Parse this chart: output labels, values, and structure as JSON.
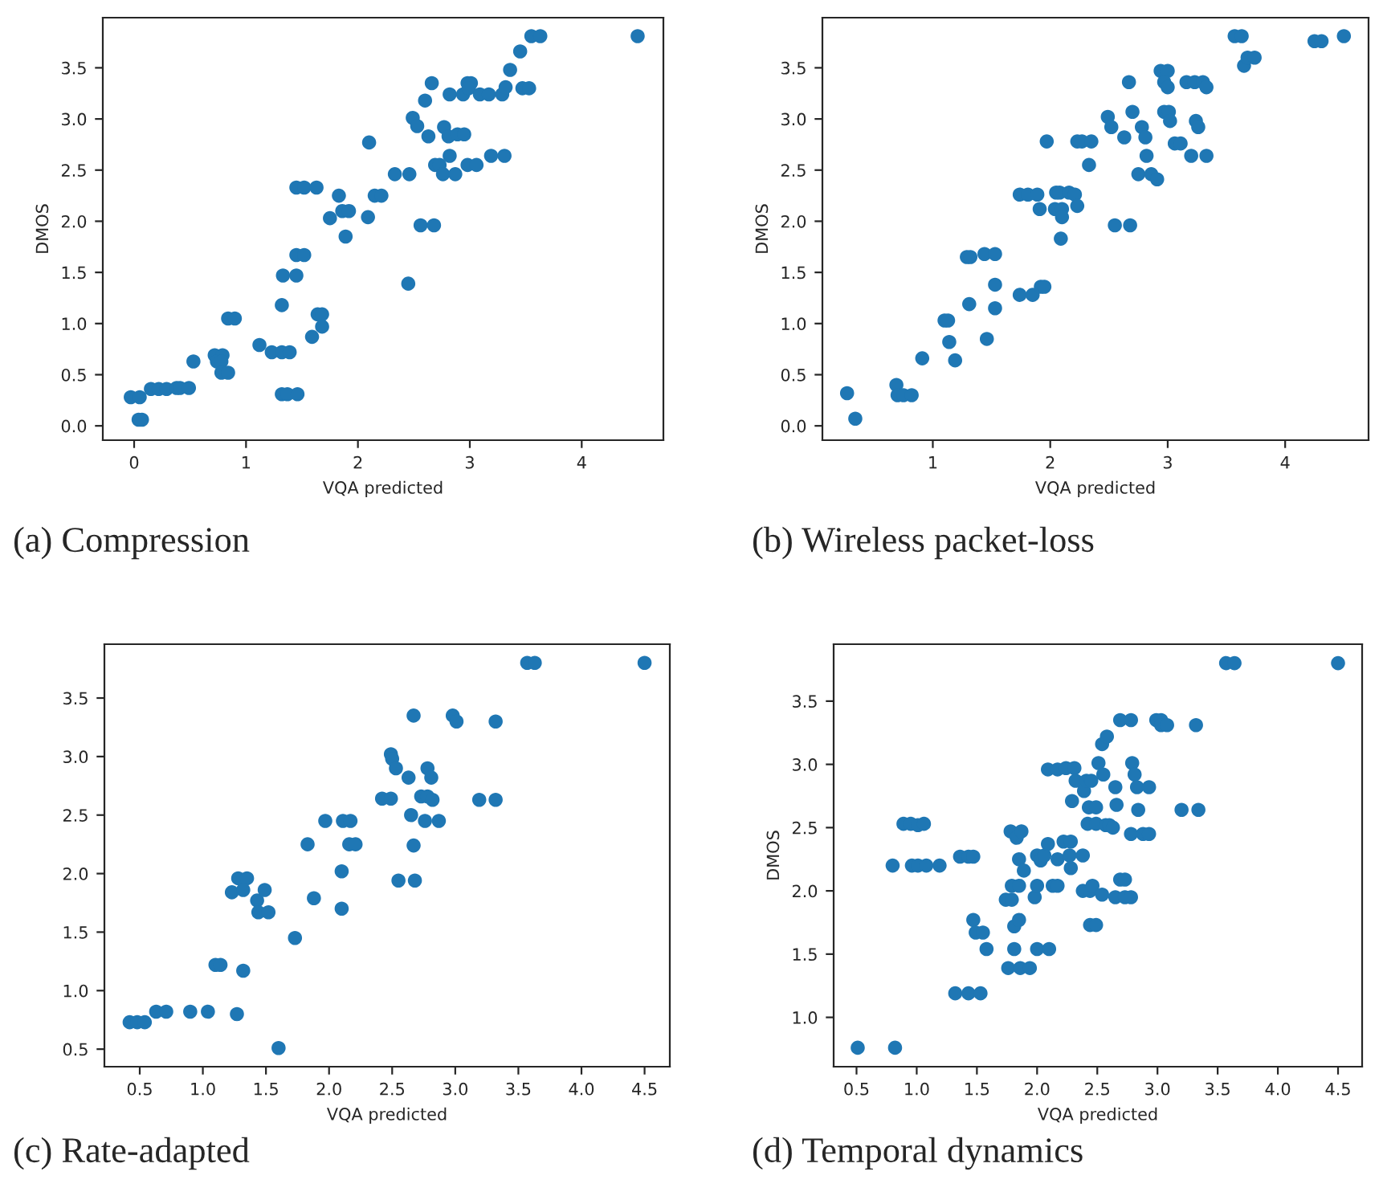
{
  "chart_data": [
    {
      "type": "scatter",
      "title": "(a) Compression",
      "xlabel": "VQA predicted",
      "ylabel": "DMOS",
      "color": "#1f77b4",
      "marker": "circle",
      "x": [
        -0.03,
        0.05,
        0.07,
        0.04,
        0.15,
        0.22,
        0.29,
        0.38,
        0.41,
        0.49,
        0.53,
        0.72,
        0.79,
        0.74,
        0.78,
        0.78,
        0.84,
        0.84,
        0.9,
        1.12,
        1.23,
        1.32,
        1.39,
        1.32,
        1.37,
        1.46,
        1.32,
        1.33,
        1.45,
        1.45,
        1.52,
        1.45,
        1.52,
        1.63,
        1.59,
        1.64,
        1.68,
        1.68,
        1.75,
        1.83,
        1.86,
        1.92,
        1.89,
        2.09,
        2.1,
        2.15,
        2.21,
        2.33,
        2.46,
        2.45,
        2.49,
        2.53,
        2.6,
        2.63,
        2.66,
        2.56,
        2.68,
        2.69,
        2.73,
        2.76,
        2.77,
        2.81,
        2.82,
        2.82,
        2.89,
        2.95,
        2.87,
        2.94,
        2.98,
        3.01,
        2.99,
        2.98,
        3.06,
        3.09,
        3.17,
        3.19,
        3.29,
        3.32,
        3.31,
        3.36,
        3.45,
        3.47,
        3.53,
        3.55,
        3.63,
        4.5
      ],
      "values": [
        0.28,
        0.28,
        0.06,
        0.06,
        0.36,
        0.36,
        0.36,
        0.37,
        0.37,
        0.37,
        0.63,
        0.69,
        0.69,
        0.63,
        0.63,
        0.52,
        0.52,
        1.05,
        1.05,
        0.79,
        0.72,
        0.72,
        0.72,
        0.31,
        0.31,
        0.31,
        1.18,
        1.47,
        1.47,
        1.67,
        1.67,
        2.33,
        2.33,
        2.33,
        0.87,
        1.09,
        1.09,
        0.97,
        2.03,
        2.25,
        2.1,
        2.1,
        1.85,
        2.04,
        2.77,
        2.25,
        2.25,
        2.46,
        2.46,
        1.39,
        3.01,
        2.93,
        3.18,
        2.83,
        3.35,
        1.96,
        1.96,
        2.55,
        2.55,
        2.46,
        2.92,
        2.83,
        2.64,
        3.24,
        2.85,
        2.85,
        2.46,
        3.24,
        3.35,
        3.35,
        3.3,
        2.55,
        2.55,
        3.24,
        3.24,
        2.64,
        3.24,
        3.31,
        2.64,
        3.48,
        3.66,
        3.3,
        3.3,
        3.81,
        3.81,
        3.81
      ],
      "xlim": [
        -0.28,
        4.73
      ],
      "ylim": [
        -0.14,
        3.99
      ],
      "xticks": [
        0,
        1,
        2,
        3,
        4
      ],
      "yticks": [
        {
          "value": 0,
          "label": "0.0"
        },
        0.5,
        {
          "value": 1,
          "label": "1.0"
        },
        1.5,
        {
          "value": 2,
          "label": "2.0"
        },
        2.5,
        {
          "value": 3,
          "label": "3.0"
        },
        3.5
      ]
    },
    {
      "type": "scatter",
      "title": "(b) Wireless packet-loss",
      "xlabel": "VQA predicted",
      "ylabel": "DMOS",
      "color": "#1f77b4",
      "marker": "circle",
      "x": [
        0.27,
        0.34,
        0.69,
        0.7,
        0.75,
        0.82,
        0.91,
        1.1,
        1.13,
        1.14,
        1.19,
        1.29,
        1.32,
        1.31,
        1.44,
        1.53,
        1.46,
        1.53,
        1.53,
        1.74,
        1.85,
        1.92,
        1.95,
        1.74,
        1.81,
        1.89,
        1.91,
        1.97,
        2.05,
        2.08,
        2.04,
        2.1,
        2.1,
        2.09,
        2.16,
        2.21,
        2.23,
        2.23,
        2.27,
        2.35,
        2.33,
        2.49,
        2.52,
        2.55,
        2.68,
        2.63,
        2.67,
        2.7,
        2.75,
        2.78,
        2.81,
        2.82,
        2.86,
        2.91,
        2.94,
        3.0,
        2.97,
        3.0,
        2.97,
        3.01,
        3.02,
        3.06,
        3.11,
        3.16,
        3.23,
        3.3,
        3.33,
        3.2,
        3.33,
        3.24,
        3.26,
        3.57,
        3.63,
        3.65,
        3.68,
        3.74,
        4.25,
        4.31,
        4.5
      ],
      "values": [
        0.32,
        0.07,
        0.4,
        0.3,
        0.3,
        0.3,
        0.66,
        1.03,
        1.03,
        0.82,
        0.64,
        1.65,
        1.65,
        1.19,
        1.68,
        1.68,
        0.85,
        1.38,
        1.15,
        1.28,
        1.28,
        1.36,
        1.36,
        2.26,
        2.26,
        2.26,
        2.12,
        2.78,
        2.28,
        2.28,
        2.12,
        2.12,
        2.04,
        1.83,
        2.28,
        2.26,
        2.15,
        2.78,
        2.78,
        2.78,
        2.55,
        3.02,
        2.92,
        1.96,
        1.96,
        2.82,
        3.36,
        3.07,
        2.46,
        2.92,
        2.82,
        2.64,
        2.46,
        2.41,
        3.47,
        3.47,
        3.36,
        3.31,
        3.07,
        3.07,
        2.98,
        2.76,
        2.76,
        3.36,
        3.36,
        3.36,
        3.31,
        2.64,
        2.64,
        2.98,
        2.92,
        3.81,
        3.81,
        3.52,
        3.6,
        3.6,
        3.76,
        3.76,
        3.81
      ],
      "xlim": [
        0.06,
        4.71
      ],
      "ylim": [
        -0.14,
        3.99
      ],
      "xticks": [
        1,
        2,
        3,
        4
      ],
      "yticks": [
        {
          "value": 0,
          "label": "0.0"
        },
        0.5,
        {
          "value": 1,
          "label": "1.0"
        },
        1.5,
        {
          "value": 2,
          "label": "2.0"
        },
        2.5,
        {
          "value": 3,
          "label": "3.0"
        },
        3.5
      ]
    },
    {
      "type": "scatter",
      "title": "(c) Rate-adapted",
      "xlabel": "VQA predicted",
      "color": "#1f77b4",
      "marker": "circle",
      "x": [
        0.42,
        0.48,
        0.54,
        0.63,
        0.71,
        0.9,
        1.04,
        1.27,
        1.1,
        1.14,
        1.32,
        1.23,
        1.28,
        1.35,
        1.32,
        1.43,
        1.49,
        1.44,
        1.52,
        1.6,
        1.73,
        1.88,
        1.83,
        1.97,
        2.1,
        2.1,
        2.11,
        2.17,
        2.16,
        2.21,
        2.42,
        2.49,
        2.49,
        2.5,
        2.53,
        2.55,
        2.68,
        2.63,
        2.65,
        2.67,
        2.67,
        2.73,
        2.78,
        2.78,
        2.81,
        2.76,
        2.82,
        2.87,
        2.98,
        3.01,
        3.19,
        3.32,
        3.32,
        3.57,
        3.63,
        4.5
      ],
      "values": [
        0.73,
        0.73,
        0.73,
        0.82,
        0.82,
        0.82,
        0.82,
        0.8,
        1.22,
        1.22,
        1.17,
        1.84,
        1.96,
        1.96,
        1.86,
        1.77,
        1.86,
        1.67,
        1.67,
        0.51,
        1.45,
        1.79,
        2.25,
        2.45,
        1.7,
        2.02,
        2.45,
        2.45,
        2.25,
        2.25,
        2.64,
        2.64,
        3.02,
        2.98,
        2.9,
        1.94,
        1.94,
        2.82,
        2.5,
        2.24,
        3.35,
        2.66,
        2.66,
        2.9,
        2.82,
        2.45,
        2.63,
        2.45,
        3.35,
        3.3,
        2.63,
        3.3,
        2.63,
        3.8,
        3.8,
        3.8
      ],
      "xlim": [
        0.22,
        4.7
      ],
      "ylim": [
        0.35,
        3.96
      ],
      "xticks": [
        0.5,
        {
          "value": 1,
          "label": "1.0"
        },
        1.5,
        {
          "value": 2,
          "label": "2.0"
        },
        2.5,
        {
          "value": 3,
          "label": "3.0"
        },
        3.5,
        {
          "value": 4,
          "label": "4.0"
        },
        4.5
      ],
      "yticks": [
        0.5,
        {
          "value": 1,
          "label": "1.0"
        },
        1.5,
        {
          "value": 2,
          "label": "2.0"
        },
        2.5,
        {
          "value": 3,
          "label": "3.0"
        },
        3.5
      ]
    },
    {
      "type": "scatter",
      "title": "(d) Temporal dynamics",
      "xlabel": "VQA predicted",
      "ylabel": "DMOS",
      "color": "#1f77b4",
      "marker": "circle",
      "x": [
        0.51,
        0.82,
        0.8,
        0.89,
        0.95,
        1.01,
        1.06,
        0.96,
        1.01,
        1.08,
        1.19,
        1.36,
        1.43,
        1.47,
        1.47,
        1.49,
        1.55,
        1.58,
        1.32,
        1.43,
        1.53,
        1.74,
        1.79,
        1.79,
        1.85,
        1.78,
        1.83,
        1.87,
        1.85,
        1.89,
        1.81,
        1.85,
        1.81,
        1.76,
        1.86,
        1.94,
        1.98,
        2.0,
        2.1,
        2.0,
        2.0,
        2.03,
        2.06,
        2.09,
        2.09,
        2.17,
        2.24,
        2.31,
        2.13,
        2.17,
        2.17,
        2.22,
        2.28,
        2.27,
        2.28,
        2.29,
        2.32,
        2.38,
        2.38,
        2.39,
        2.41,
        2.45,
        2.42,
        2.44,
        2.46,
        2.44,
        2.49,
        2.43,
        2.49,
        2.49,
        2.51,
        2.55,
        2.54,
        2.57,
        2.6,
        2.63,
        2.54,
        2.58,
        2.65,
        2.66,
        2.69,
        2.73,
        2.69,
        2.78,
        2.65,
        2.73,
        2.78,
        2.78,
        2.79,
        2.81,
        2.83,
        2.84,
        2.88,
        2.93,
        2.93,
        2.99,
        3.03,
        3.03,
        3.08,
        3.2,
        3.32,
        3.34,
        3.57,
        3.64,
        4.5
      ],
      "values": [
        0.76,
        0.76,
        2.2,
        2.53,
        2.53,
        2.52,
        2.53,
        2.2,
        2.2,
        2.2,
        2.2,
        2.27,
        2.27,
        2.27,
        1.77,
        1.67,
        1.67,
        1.54,
        1.19,
        1.19,
        1.19,
        1.93,
        1.93,
        2.04,
        2.04,
        2.47,
        2.42,
        2.47,
        2.25,
        2.16,
        1.72,
        1.77,
        1.54,
        1.39,
        1.39,
        1.39,
        1.95,
        1.54,
        1.54,
        2.04,
        2.28,
        2.24,
        2.28,
        2.37,
        2.96,
        2.96,
        2.97,
        2.97,
        2.04,
        2.04,
        2.25,
        2.39,
        2.39,
        2.28,
        2.18,
        2.71,
        2.87,
        2.0,
        2.28,
        2.79,
        2.87,
        2.87,
        2.53,
        2.0,
        2.04,
        1.73,
        1.73,
        2.66,
        2.66,
        2.53,
        3.01,
        2.92,
        1.97,
        2.52,
        2.52,
        2.5,
        3.16,
        3.22,
        2.82,
        2.68,
        2.09,
        2.09,
        3.35,
        3.35,
        1.95,
        1.95,
        1.95,
        2.45,
        3.01,
        2.92,
        2.82,
        2.64,
        2.45,
        2.45,
        2.82,
        3.35,
        3.35,
        3.31,
        3.31,
        2.64,
        3.31,
        2.64,
        3.8,
        3.8,
        3.8
      ],
      "xlim": [
        0.31,
        4.7
      ],
      "ylim": [
        0.61,
        3.95
      ],
      "xticks": [
        0.5,
        {
          "value": 1,
          "label": "1.0"
        },
        1.5,
        {
          "value": 2,
          "label": "2.0"
        },
        2.5,
        {
          "value": 3,
          "label": "3.0"
        },
        3.5,
        {
          "value": 4,
          "label": "4.0"
        },
        4.5
      ],
      "yticks": [
        {
          "value": 1,
          "label": "1.0"
        },
        1.5,
        {
          "value": 2,
          "label": "2.0"
        },
        2.5,
        {
          "value": 3,
          "label": "3.0"
        },
        3.5
      ]
    }
  ]
}
